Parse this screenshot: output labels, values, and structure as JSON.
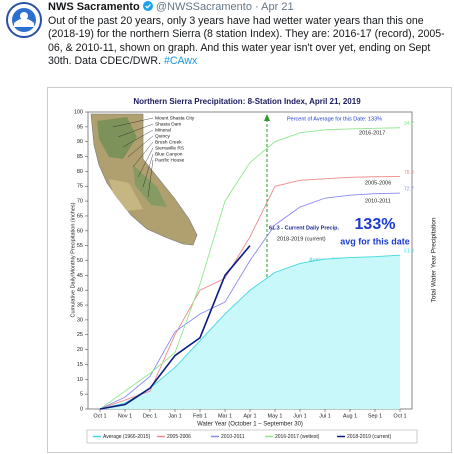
{
  "tweet": {
    "name": "NWS Sacramento",
    "handle": "@NWSSacramento",
    "separator": "·",
    "date": "Apr 21",
    "text": "Out of the past 20 years, only 3 years have had wetter water years than this one (2018-19) for the northern Sierra (8 station Index). They are: 2016-17 (record), 2005-06, & 2010-11, shown on graph. And this water year isn't over yet, ending on Sept 30th. Data CDEC/DWR.",
    "hashtag": "#CAwx"
  },
  "chart_data": {
    "type": "line",
    "title": "Northern Sierra Precipitation: 8-Station Index, April 21, 2019",
    "ylabel": "Cumulative Daily/Monthly Precipitation (inches)",
    "y2label": "Total Water Year Precipitation",
    "xlabel": "Water Year (October 1 – September 30)",
    "categories": [
      "Oct 1",
      "Nov 1",
      "Dec 1",
      "Jan 1",
      "Feb 1",
      "Mar 1",
      "Apr 1",
      "May 1",
      "Jun 1",
      "Jul 1",
      "Aug 1",
      "Sep 1",
      "Oct 1"
    ],
    "ylim": [
      0,
      100
    ],
    "yticks": [
      0,
      5,
      10,
      15,
      20,
      25,
      30,
      35,
      40,
      45,
      50,
      55,
      60,
      65,
      70,
      75,
      80,
      85,
      90,
      95,
      100
    ],
    "series": [
      {
        "name": "Average (1966-2015)",
        "color": "#3fd8e0",
        "fill": "#c8f8fa",
        "values": [
          0,
          2,
          7,
          14,
          23,
          32,
          40,
          46,
          49,
          50.5,
          51,
          51.3,
          51.8
        ]
      },
      {
        "name": "2005-2006",
        "color": "#f08a8a",
        "values": [
          0,
          3,
          6,
          25,
          40,
          44,
          58,
          75,
          77,
          77.5,
          78,
          78.2,
          78.3
        ]
      },
      {
        "name": "2010-2011",
        "color": "#8a8af0",
        "values": [
          0,
          4,
          11,
          26,
          32,
          36,
          50,
          62,
          68,
          71,
          72,
          72.5,
          72.7
        ]
      },
      {
        "name": "2016-2017 (wettest)",
        "color": "#8ee68e",
        "values": [
          0,
          6,
          12,
          19,
          42,
          70,
          83,
          90,
          93,
          94,
          94.3,
          94.5,
          94.7
        ]
      },
      {
        "name": "2018-2019 (current)",
        "color": "#0a1a80",
        "values": [
          0,
          1.5,
          7,
          18,
          24,
          45,
          55,
          null,
          null,
          null,
          null,
          null,
          null
        ]
      }
    ],
    "annotations": {
      "percent": "Percent of Average for this Date: 133%",
      "wy2017": "2016-2017",
      "wy2006": "2005-2006",
      "wy2011": "2010-2011",
      "average": "Average (1966-2015)",
      "current_precip": "61.3 - Current Daily Precip.",
      "current": "2018-2019 (current)",
      "big_percent": "133%",
      "avg_date": "avg for this date"
    },
    "stations": [
      "Mount Shasta City",
      "Shasta Dam",
      "Mineral",
      "Quincy",
      "Brush Creek",
      "Sierraville RS",
      "Blue Canyon",
      "Pacific House"
    ]
  }
}
